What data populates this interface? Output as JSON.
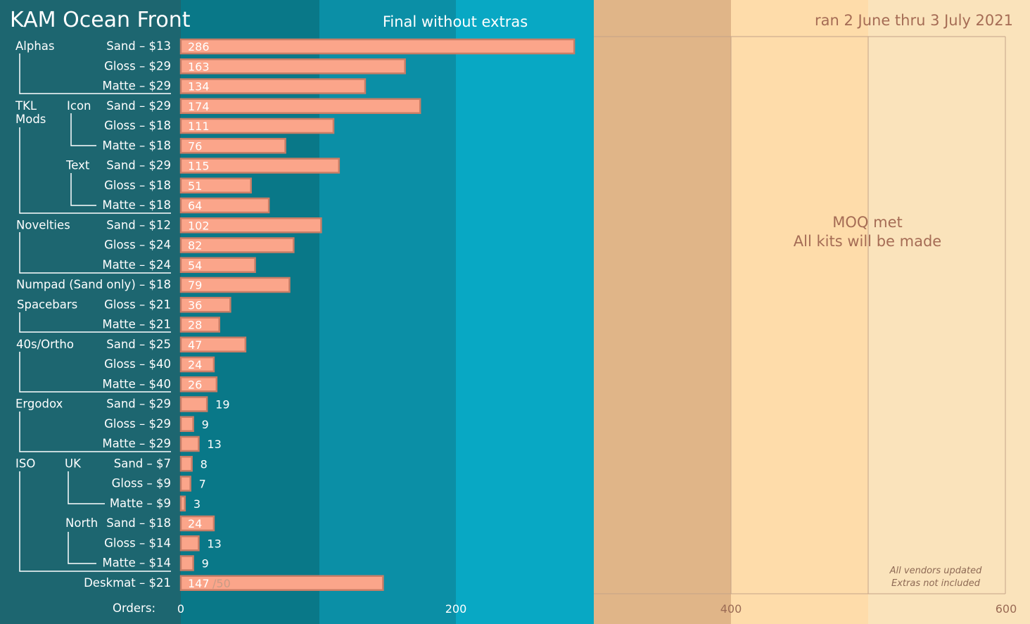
{
  "title": "KAM Ocean Front",
  "subtitle": "Final without extras",
  "date_range": "ran 2 June thru 3 July 2021",
  "moq_lines": [
    "MOQ met",
    "All kits will be made"
  ],
  "notes": [
    "All vendors updated",
    "Extras not included"
  ],
  "orders_label": "Orders:",
  "colors": {
    "band1": "#1d6670",
    "band2": "#097888",
    "band3": "#0b8fa6",
    "band4": "#08a8c4",
    "band5": "#e0b588",
    "band6": "#fedcaa",
    "band7": "#fae3bb",
    "bar_fill": "#fba58a",
    "bar_stroke": "#c87d66"
  },
  "chart_data": {
    "type": "bar",
    "orientation": "horizontal",
    "xlim": [
      0,
      600
    ],
    "xticks": [
      "0",
      "200",
      "400",
      "600"
    ],
    "groups": [
      {
        "label": "Alphas",
        "sub": ""
      },
      {
        "label": "TKL",
        "label2": "Mods",
        "sub": "Icon"
      },
      {
        "label": "",
        "sub": "Text"
      },
      {
        "label": "Novelties",
        "sub": ""
      },
      {
        "label": "Spacebars",
        "sub": ""
      },
      {
        "label": "40s/Ortho",
        "sub": ""
      },
      {
        "label": "Ergodox",
        "sub": ""
      },
      {
        "label": "ISO",
        "sub": "UK"
      },
      {
        "label": "",
        "sub": "North"
      }
    ],
    "categories": [
      "Sand – $13",
      "Gloss – $29",
      "Matte – $29",
      "Sand – $29",
      "Gloss – $18",
      "Matte – $18",
      "Sand – $29",
      "Gloss – $18",
      "Matte – $18",
      "Sand – $12",
      "Gloss – $24",
      "Matte – $24",
      "Numpad (Sand only) – $18",
      "Gloss – $21",
      "Matte – $21",
      "Sand – $25",
      "Gloss – $40",
      "Matte – $40",
      "Sand – $29",
      "Gloss – $29",
      "Matte – $29",
      "Sand – $7",
      "Gloss – $9",
      "Matte – $9",
      "Sand – $18",
      "Gloss – $14",
      "Matte – $14",
      "Deskmat – $21"
    ],
    "values": [
      286,
      163,
      134,
      174,
      111,
      76,
      115,
      51,
      64,
      102,
      82,
      54,
      79,
      36,
      28,
      47,
      24,
      26,
      19,
      9,
      13,
      8,
      7,
      3,
      24,
      13,
      9,
      147
    ],
    "deskmat_goal": "/50"
  }
}
